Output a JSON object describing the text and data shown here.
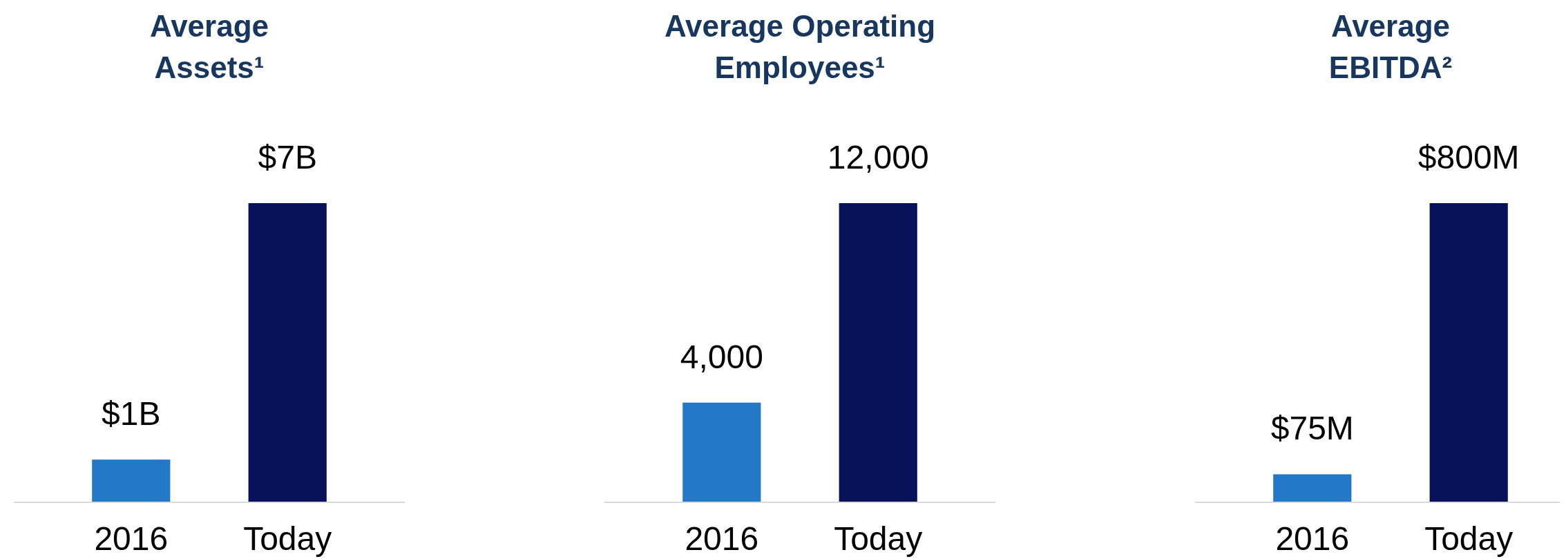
{
  "chart_data": [
    {
      "type": "bar",
      "title": "Average Assets¹",
      "categories": [
        "2016",
        "Today"
      ],
      "values": [
        1,
        7
      ],
      "colors": [
        "#2479c7",
        "#06135a"
      ],
      "value_labels": [
        "$1B",
        "$7B"
      ]
    },
    {
      "type": "bar",
      "title": "Average Operating Employees¹",
      "categories": [
        "2016",
        "Today"
      ],
      "values": [
        4000,
        12000
      ],
      "colors": [
        "#2479c7",
        "#06135a"
      ],
      "value_labels": [
        "4,000",
        "12,000"
      ]
    },
    {
      "type": "bar",
      "title": "Average EBITDA²",
      "categories": [
        "2016",
        "Today"
      ],
      "values": [
        75,
        800
      ],
      "colors": [
        "#2479c7",
        "#06135a"
      ],
      "value_labels": [
        "$75M",
        "$800M"
      ]
    }
  ]
}
